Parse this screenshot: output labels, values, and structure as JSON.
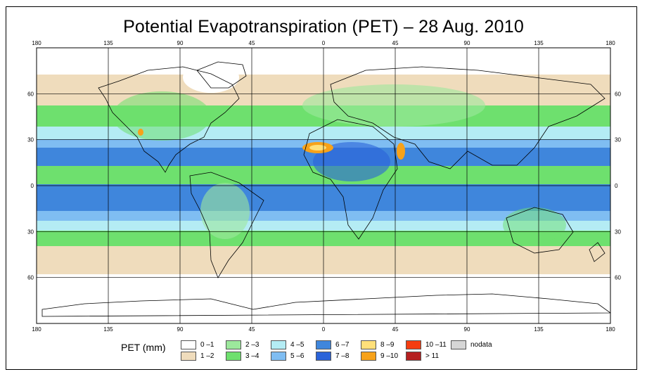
{
  "title": "Potential Evapotranspiration (PET) – 28 Aug. 2010",
  "legend": {
    "title": "PET (mm)",
    "items": [
      {
        "label": "0 –1",
        "color": "#ffffff"
      },
      {
        "label": "1 –2",
        "color": "#efdcbc"
      },
      {
        "label": "2 –3",
        "color": "#9ce89c"
      },
      {
        "label": "3 –4",
        "color": "#6ee06e"
      },
      {
        "label": "4 –5",
        "color": "#b4ecf4"
      },
      {
        "label": "5 –6",
        "color": "#7fbdf2"
      },
      {
        "label": "6 –7",
        "color": "#3f86dc"
      },
      {
        "label": "7 –8",
        "color": "#2a63d9"
      },
      {
        "label": "8 –9",
        "color": "#ffe07a"
      },
      {
        "label": "9 –10",
        "color": "#f7a21a"
      },
      {
        "label": "10 –11",
        "color": "#f53d10"
      },
      {
        "label": "> 11",
        "color": "#b52020"
      },
      {
        "label": "nodata",
        "color": "#d6d6d6"
      }
    ]
  },
  "axes": {
    "lon_ticks": [
      {
        "value": -180,
        "label": "180"
      },
      {
        "value": -135,
        "label": "135"
      },
      {
        "value": -90,
        "label": "90"
      },
      {
        "value": -45,
        "label": "45"
      },
      {
        "value": 0,
        "label": "0"
      },
      {
        "value": 45,
        "label": "45"
      },
      {
        "value": 90,
        "label": "90"
      },
      {
        "value": 135,
        "label": "135"
      },
      {
        "value": 180,
        "label": "180"
      }
    ],
    "lat_ticks": [
      {
        "value": 60,
        "label": "60"
      },
      {
        "value": 30,
        "label": "30"
      },
      {
        "value": 0,
        "label": "0"
      },
      {
        "value": -30,
        "label": "30"
      },
      {
        "value": -60,
        "label": "60"
      }
    ],
    "lat_range": [
      -90,
      90
    ],
    "lon_range": [
      -180,
      180
    ]
  }
}
